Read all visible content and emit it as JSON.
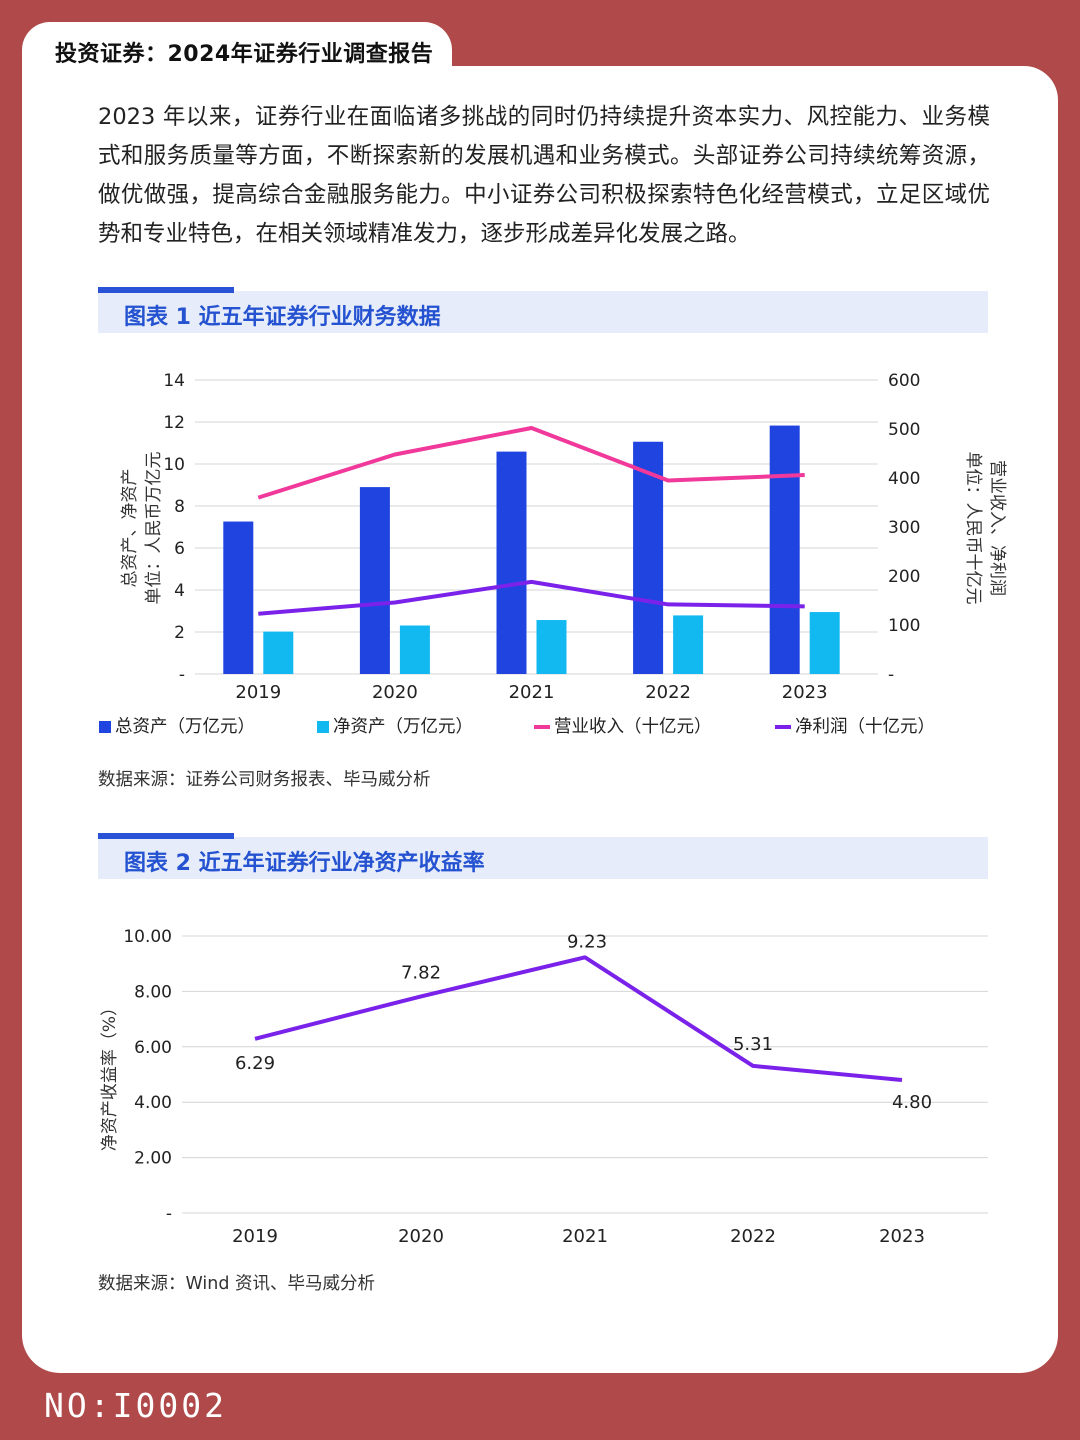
{
  "header": {
    "title": "投资证券：2024年证券行业调查报告"
  },
  "intro": "2023 年以来，证券行业在面临诸多挑战的同时仍持续提升资本实力、风控能力、业务模式和服务质量等方面，不断探索新的发展机遇和业务模式。头部证券公司持续统筹资源，做优做强，提高综合金融服务能力。中小证券公司积极探索特色化经营模式，立足区域优势和专业特色，在相关领域精准发力，逐步形成差异化发展之路。",
  "figure1": {
    "heading": "图表 1 近五年证券行业财务数据",
    "source": "数据来源：证券公司财务报表、毕马威分析"
  },
  "figure2": {
    "heading": "图表 2 近五年证券行业净资产收益率",
    "source": "数据来源：Wind 资讯、毕马威分析"
  },
  "footer": {
    "code": "NO:I0002"
  },
  "colors": {
    "bar_total": "#1f44e0",
    "bar_net": "#12b8f0",
    "line_revenue": "#f0399a",
    "line_profit": "#7b22ea",
    "roe_line": "#7a22ea",
    "accent": "#2452d0",
    "background": "#b04a4a"
  },
  "chart_data": [
    {
      "type": "bar",
      "title": "近五年证券行业财务数据",
      "categories": [
        "2019",
        "2020",
        "2021",
        "2022",
        "2023"
      ],
      "ylabel": "总资产、净资产 单位：人民币万亿元",
      "y2label": "营业收入、净利润 单位：人民币十亿元",
      "ylim": [
        0,
        14
      ],
      "y2lim": [
        0,
        600
      ],
      "yticks": [
        "-",
        "2",
        "4",
        "6",
        "8",
        "10",
        "12",
        "14"
      ],
      "y2ticks": [
        "-",
        "100",
        "200",
        "300",
        "400",
        "500",
        "600"
      ],
      "series": [
        {
          "name": "总资产（万亿元）",
          "type": "bar",
          "axis": "left",
          "values": [
            7.26,
            8.9,
            10.59,
            11.06,
            11.83
          ]
        },
        {
          "name": "净资产（万亿元）",
          "type": "bar",
          "axis": "left",
          "values": [
            2.02,
            2.31,
            2.57,
            2.79,
            2.95
          ]
        },
        {
          "name": "营业收入（十亿元）",
          "type": "line",
          "axis": "right",
          "values": [
            360,
            448,
            502,
            395,
            406
          ]
        },
        {
          "name": "净利润（十亿元）",
          "type": "line",
          "axis": "right",
          "values": [
            123,
            146,
            188,
            142,
            138
          ]
        }
      ]
    },
    {
      "type": "line",
      "title": "近五年证券行业净资产收益率",
      "categories": [
        "2019",
        "2020",
        "2021",
        "2022",
        "2023"
      ],
      "ylabel": "净资产收益率（%）",
      "ylim": [
        0,
        10
      ],
      "yticks": [
        "-",
        "2.00",
        "4.00",
        "6.00",
        "8.00",
        "10.00"
      ],
      "series": [
        {
          "name": "净资产收益率",
          "values": [
            6.29,
            7.82,
            9.23,
            5.31,
            4.8
          ],
          "labels": [
            "6.29",
            "7.82",
            "9.23",
            "5.31",
            "4.80"
          ]
        }
      ]
    }
  ]
}
